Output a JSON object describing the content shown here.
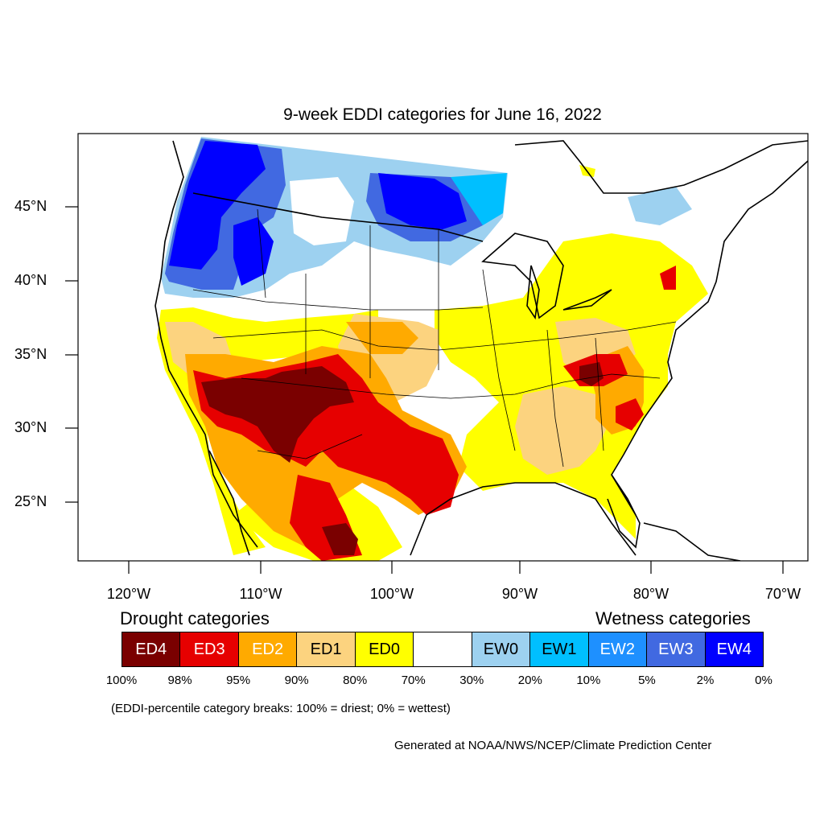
{
  "title": "9-week EDDI categories for June 16, 2022",
  "lat_labels": [
    "45°N",
    "40°N",
    "35°N",
    "30°N",
    "25°N"
  ],
  "lon_labels": [
    "120°W",
    "110°W",
    "100°W",
    "90°W",
    "80°W",
    "70°W"
  ],
  "drought_heading": "Drought categories",
  "wetness_heading": "Wetness categories",
  "categories": [
    {
      "label": "ED4",
      "color": "#7a0000",
      "text_color": "#ffffff"
    },
    {
      "label": "ED3",
      "color": "#e60000",
      "text_color": "#ffffff"
    },
    {
      "label": "ED2",
      "color": "#ffaa00",
      "text_color": "#ffffff"
    },
    {
      "label": "ED1",
      "color": "#fcd37f",
      "text_color": "#000000"
    },
    {
      "label": "ED0",
      "color": "#ffff00",
      "text_color": "#000000"
    },
    {
      "label": "",
      "color": "#ffffff",
      "text_color": "#000000"
    },
    {
      "label": "EW0",
      "color": "#9dd1f0",
      "text_color": "#000000"
    },
    {
      "label": "EW1",
      "color": "#00bfff",
      "text_color": "#000000"
    },
    {
      "label": "EW2",
      "color": "#1e90ff",
      "text_color": "#ffffff"
    },
    {
      "label": "EW3",
      "color": "#4169e1",
      "text_color": "#ffffff"
    },
    {
      "label": "EW4",
      "color": "#0000ff",
      "text_color": "#ffffff"
    }
  ],
  "breaks": [
    "100%",
    "98%",
    "95%",
    "90%",
    "80%",
    "70%",
    "30%",
    "20%",
    "10%",
    "5%",
    "2%",
    "0%"
  ],
  "note": "(EDDI-percentile category breaks: 100% = driest; 0% = wettest)",
  "credit": "Generated at NOAA/NWS/NCEP/Climate Prediction Center"
}
